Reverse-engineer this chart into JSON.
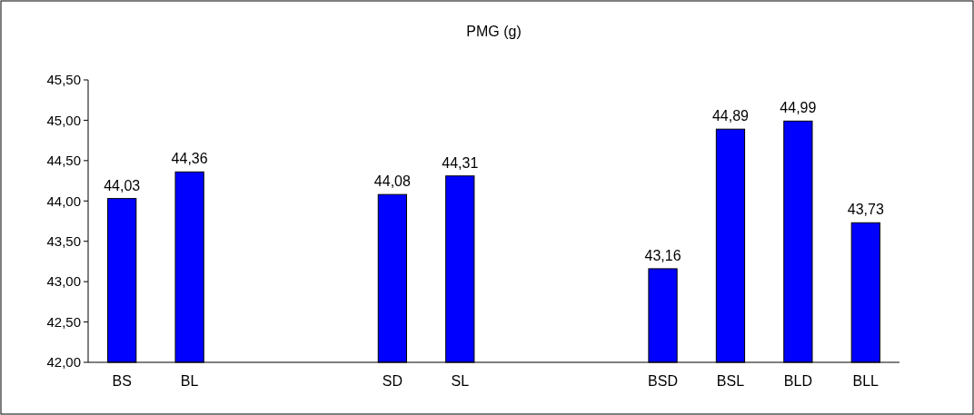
{
  "chart_data": {
    "type": "bar",
    "title": "PMG (g)",
    "categories": [
      "BS",
      "BL",
      null,
      null,
      "SD",
      "SL",
      null,
      null,
      "BSD",
      "BSL",
      "BLD",
      "BLL"
    ],
    "values": [
      44.03,
      44.36,
      null,
      null,
      44.08,
      44.31,
      null,
      null,
      43.16,
      44.89,
      44.99,
      43.73
    ],
    "value_labels": [
      "44,03",
      "44,36",
      null,
      null,
      "44,08",
      "44,31",
      null,
      null,
      "43,16",
      "44,89",
      "44,99",
      "43,73"
    ],
    "color": "#0000ff",
    "ylim": [
      42,
      45.5
    ],
    "yticks": [
      {
        "value": 42,
        "label": "42,00"
      },
      {
        "value": 42.5,
        "label": "42,50"
      },
      {
        "value": 43,
        "label": "43,00"
      },
      {
        "value": 43.5,
        "label": "43,50"
      },
      {
        "value": 44,
        "label": "44,00"
      },
      {
        "value": 44.5,
        "label": "44,50"
      },
      {
        "value": 45,
        "label": "45,00"
      },
      {
        "value": 45.5,
        "label": "45,50"
      }
    ],
    "grid": false
  }
}
